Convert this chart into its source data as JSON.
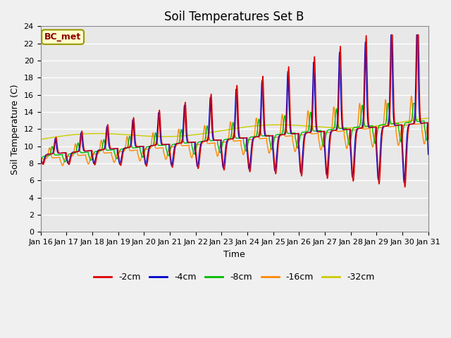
{
  "title": "Soil Temperatures Set B",
  "xlabel": "Time",
  "ylabel": "Soil Temperature (C)",
  "annotation": "BC_met",
  "ylim": [
    0,
    24
  ],
  "yticks": [
    0,
    2,
    4,
    6,
    8,
    10,
    12,
    14,
    16,
    18,
    20,
    22,
    24
  ],
  "xtick_labels": [
    "Jan 16",
    "Jan 17",
    "Jan 18",
    "Jan 19",
    "Jan 20",
    "Jan 21",
    "Jan 22",
    "Jan 23",
    "Jan 24",
    "Jan 25",
    "Jan 26",
    "Jan 27",
    "Jan 28",
    "Jan 29",
    "Jan 30",
    "Jan 31"
  ],
  "series_colors": [
    "#dd0000",
    "#0000cc",
    "#00bb00",
    "#ff8800",
    "#cccc00"
  ],
  "series_labels": [
    "-2cm",
    "-4cm",
    "-8cm",
    "-16cm",
    "-32cm"
  ],
  "plot_bg_color": "#e8e8e8",
  "fig_bg_color": "#f0f0f0",
  "grid_color": "#ffffff",
  "title_fontsize": 12,
  "axis_fontsize": 9,
  "tick_fontsize": 8,
  "legend_fontsize": 9
}
